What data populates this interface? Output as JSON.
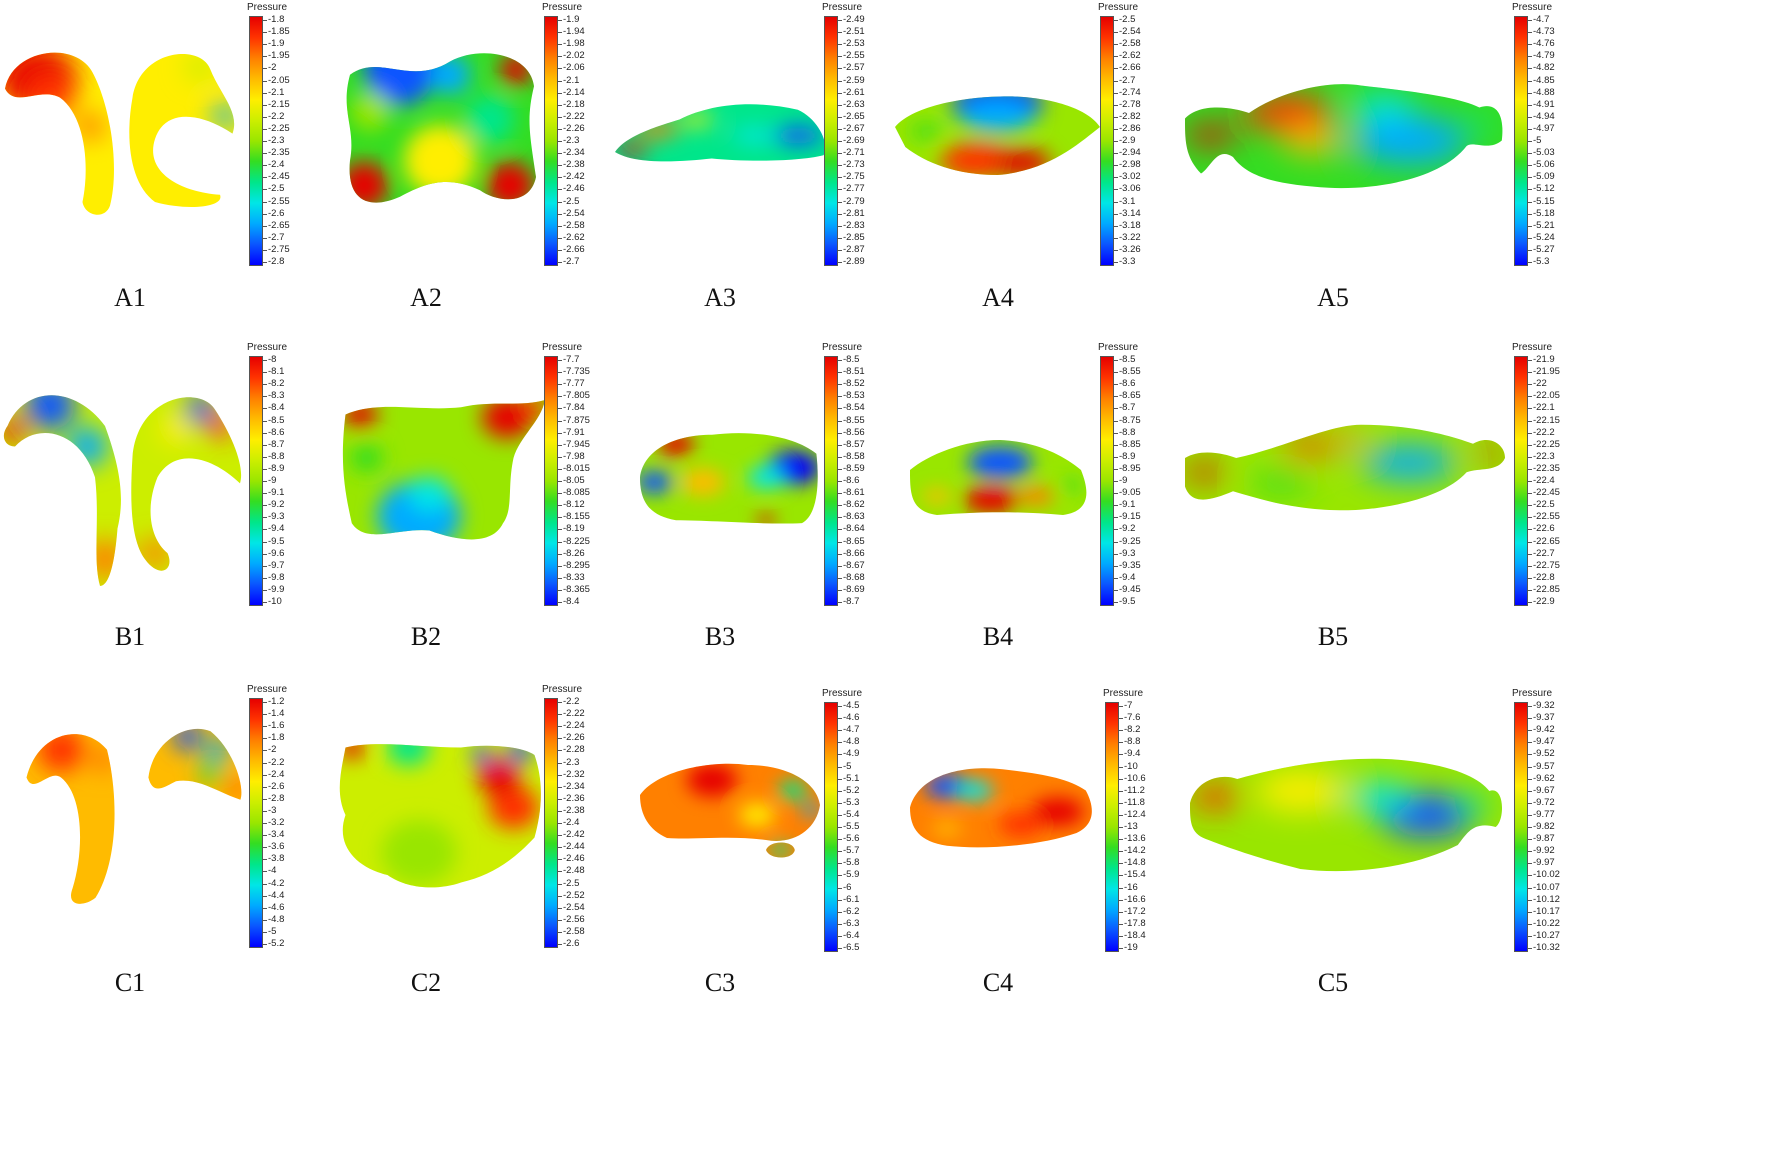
{
  "legend_title": "Pressure",
  "colormap": [
    "#0000ff",
    "#0a55ff",
    "#00aaff",
    "#00e6e6",
    "#00e68a",
    "#33dd22",
    "#99e600",
    "#ccee00",
    "#ffee00",
    "#ffbb00",
    "#ff8000",
    "#ff3300",
    "#e60000"
  ],
  "panels": [
    {
      "id": "A1",
      "caption": "A1",
      "ticks": [
        "-1.8",
        "-1.85",
        "-1.9",
        "-1.95",
        "-2",
        "-2.05",
        "-2.1",
        "-2.15",
        "-2.2",
        "-2.25",
        "-2.3",
        "-2.35",
        "-2.4",
        "-2.45",
        "-2.5",
        "-2.55",
        "-2.6",
        "-2.65",
        "-2.7",
        "-2.75",
        "-2.8"
      ]
    },
    {
      "id": "A2",
      "caption": "A2",
      "ticks": [
        "-1.9",
        "-1.94",
        "-1.98",
        "-2.02",
        "-2.06",
        "-2.1",
        "-2.14",
        "-2.18",
        "-2.22",
        "-2.26",
        "-2.3",
        "-2.34",
        "-2.38",
        "-2.42",
        "-2.46",
        "-2.5",
        "-2.54",
        "-2.58",
        "-2.62",
        "-2.66",
        "-2.7"
      ]
    },
    {
      "id": "A3",
      "caption": "A3",
      "ticks": [
        "-2.49",
        "-2.51",
        "-2.53",
        "-2.55",
        "-2.57",
        "-2.59",
        "-2.61",
        "-2.63",
        "-2.65",
        "-2.67",
        "-2.69",
        "-2.71",
        "-2.73",
        "-2.75",
        "-2.77",
        "-2.79",
        "-2.81",
        "-2.83",
        "-2.85",
        "-2.87",
        "-2.89"
      ]
    },
    {
      "id": "A4",
      "caption": "A4",
      "ticks": [
        "-2.5",
        "-2.54",
        "-2.58",
        "-2.62",
        "-2.66",
        "-2.7",
        "-2.74",
        "-2.78",
        "-2.82",
        "-2.86",
        "-2.9",
        "-2.94",
        "-2.98",
        "-3.02",
        "-3.06",
        "-3.1",
        "-3.14",
        "-3.18",
        "-3.22",
        "-3.26",
        "-3.3"
      ]
    },
    {
      "id": "A5",
      "caption": "A5",
      "ticks": [
        "-4.7",
        "-4.73",
        "-4.76",
        "-4.79",
        "-4.82",
        "-4.85",
        "-4.88",
        "-4.91",
        "-4.94",
        "-4.97",
        "-5",
        "-5.03",
        "-5.06",
        "-5.09",
        "-5.12",
        "-5.15",
        "-5.18",
        "-5.21",
        "-5.24",
        "-5.27",
        "-5.3"
      ]
    },
    {
      "id": "B1",
      "caption": "B1",
      "ticks": [
        "-8",
        "-8.1",
        "-8.2",
        "-8.3",
        "-8.4",
        "-8.5",
        "-8.6",
        "-8.7",
        "-8.8",
        "-8.9",
        "-9",
        "-9.1",
        "-9.2",
        "-9.3",
        "-9.4",
        "-9.5",
        "-9.6",
        "-9.7",
        "-9.8",
        "-9.9",
        "-10"
      ]
    },
    {
      "id": "B2",
      "caption": "B2",
      "ticks": [
        "-7.7",
        "-7.735",
        "-7.77",
        "-7.805",
        "-7.84",
        "-7.875",
        "-7.91",
        "-7.945",
        "-7.98",
        "-8.015",
        "-8.05",
        "-8.085",
        "-8.12",
        "-8.155",
        "-8.19",
        "-8.225",
        "-8.26",
        "-8.295",
        "-8.33",
        "-8.365",
        "-8.4"
      ]
    },
    {
      "id": "B3",
      "caption": "B3",
      "ticks": [
        "-8.5",
        "-8.51",
        "-8.52",
        "-8.53",
        "-8.54",
        "-8.55",
        "-8.56",
        "-8.57",
        "-8.58",
        "-8.59",
        "-8.6",
        "-8.61",
        "-8.62",
        "-8.63",
        "-8.64",
        "-8.65",
        "-8.66",
        "-8.67",
        "-8.68",
        "-8.69",
        "-8.7"
      ]
    },
    {
      "id": "B4",
      "caption": "B4",
      "ticks": [
        "-8.5",
        "-8.55",
        "-8.6",
        "-8.65",
        "-8.7",
        "-8.75",
        "-8.8",
        "-8.85",
        "-8.9",
        "-8.95",
        "-9",
        "-9.05",
        "-9.1",
        "-9.15",
        "-9.2",
        "-9.25",
        "-9.3",
        "-9.35",
        "-9.4",
        "-9.45",
        "-9.5"
      ]
    },
    {
      "id": "B5",
      "caption": "B5",
      "ticks": [
        "-21.9",
        "-21.95",
        "-22",
        "-22.05",
        "-22.1",
        "-22.15",
        "-22.2",
        "-22.25",
        "-22.3",
        "-22.35",
        "-22.4",
        "-22.45",
        "-22.5",
        "-22.55",
        "-22.6",
        "-22.65",
        "-22.7",
        "-22.75",
        "-22.8",
        "-22.85",
        "-22.9"
      ]
    },
    {
      "id": "C1",
      "caption": "C1",
      "ticks": [
        "-1.2",
        "-1.4",
        "-1.6",
        "-1.8",
        "-2",
        "-2.2",
        "-2.4",
        "-2.6",
        "-2.8",
        "-3",
        "-3.2",
        "-3.4",
        "-3.6",
        "-3.8",
        "-4",
        "-4.2",
        "-4.4",
        "-4.6",
        "-4.8",
        "-5",
        "-5.2"
      ]
    },
    {
      "id": "C2",
      "caption": "C2",
      "ticks": [
        "-2.2",
        "-2.22",
        "-2.24",
        "-2.26",
        "-2.28",
        "-2.3",
        "-2.32",
        "-2.34",
        "-2.36",
        "-2.38",
        "-2.4",
        "-2.42",
        "-2.44",
        "-2.46",
        "-2.48",
        "-2.5",
        "-2.52",
        "-2.54",
        "-2.56",
        "-2.58",
        "-2.6"
      ]
    },
    {
      "id": "C3",
      "caption": "C3",
      "ticks": [
        "-4.5",
        "-4.6",
        "-4.7",
        "-4.8",
        "-4.9",
        "-5",
        "-5.1",
        "-5.2",
        "-5.3",
        "-5.4",
        "-5.5",
        "-5.6",
        "-5.7",
        "-5.8",
        "-5.9",
        "-6",
        "-6.1",
        "-6.2",
        "-6.3",
        "-6.4",
        "-6.5"
      ]
    },
    {
      "id": "C4",
      "caption": "C4",
      "ticks": [
        "-7",
        "-7.6",
        "-8.2",
        "-8.8",
        "-9.4",
        "-10",
        "-10.6",
        "-11.2",
        "-11.8",
        "-12.4",
        "-13",
        "-13.6",
        "-14.2",
        "-14.8",
        "-15.4",
        "-16",
        "-16.6",
        "-17.2",
        "-17.8",
        "-18.4",
        "-19"
      ]
    },
    {
      "id": "C5",
      "caption": "C5",
      "ticks": [
        "-9.32",
        "-9.37",
        "-9.42",
        "-9.47",
        "-9.52",
        "-9.57",
        "-9.62",
        "-9.67",
        "-9.72",
        "-9.77",
        "-9.82",
        "-9.87",
        "-9.92",
        "-9.97",
        "-10.02",
        "-10.07",
        "-10.12",
        "-10.17",
        "-10.22",
        "-10.27",
        "-10.32"
      ]
    }
  ]
}
